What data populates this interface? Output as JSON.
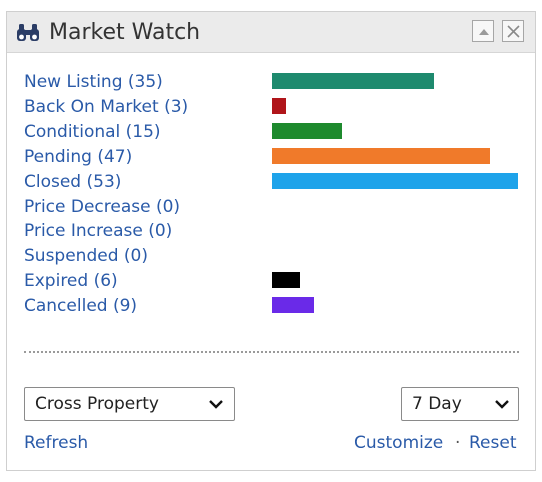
{
  "widget": {
    "title": "Market Watch",
    "icon": "binoculars-icon"
  },
  "statuses": [
    {
      "label": "New Listing (35)",
      "count": 35,
      "color": "#1e8a6e"
    },
    {
      "label": "Back On Market (3)",
      "count": 3,
      "color": "#b0151a"
    },
    {
      "label": "Conditional (15)",
      "count": 15,
      "color": "#1e8a2e"
    },
    {
      "label": "Pending (47)",
      "count": 47,
      "color": "#f07a2a"
    },
    {
      "label": "Closed (53)",
      "count": 53,
      "color": "#1ea3ea"
    },
    {
      "label": "Price Decrease (0)",
      "count": 0,
      "color": "#999999"
    },
    {
      "label": "Price Increase (0)",
      "count": 0,
      "color": "#999999"
    },
    {
      "label": "Suspended (0)",
      "count": 0,
      "color": "#999999"
    },
    {
      "label": "Expired (6)",
      "count": 6,
      "color": "#000000"
    },
    {
      "label": "Cancelled (9)",
      "count": 9,
      "color": "#6a2ae8"
    }
  ],
  "filters": {
    "property_type": "Cross Property",
    "period": "7 Day"
  },
  "footer": {
    "refresh": "Refresh",
    "customize": "Customize",
    "separator": "·",
    "reset": "Reset"
  }
}
